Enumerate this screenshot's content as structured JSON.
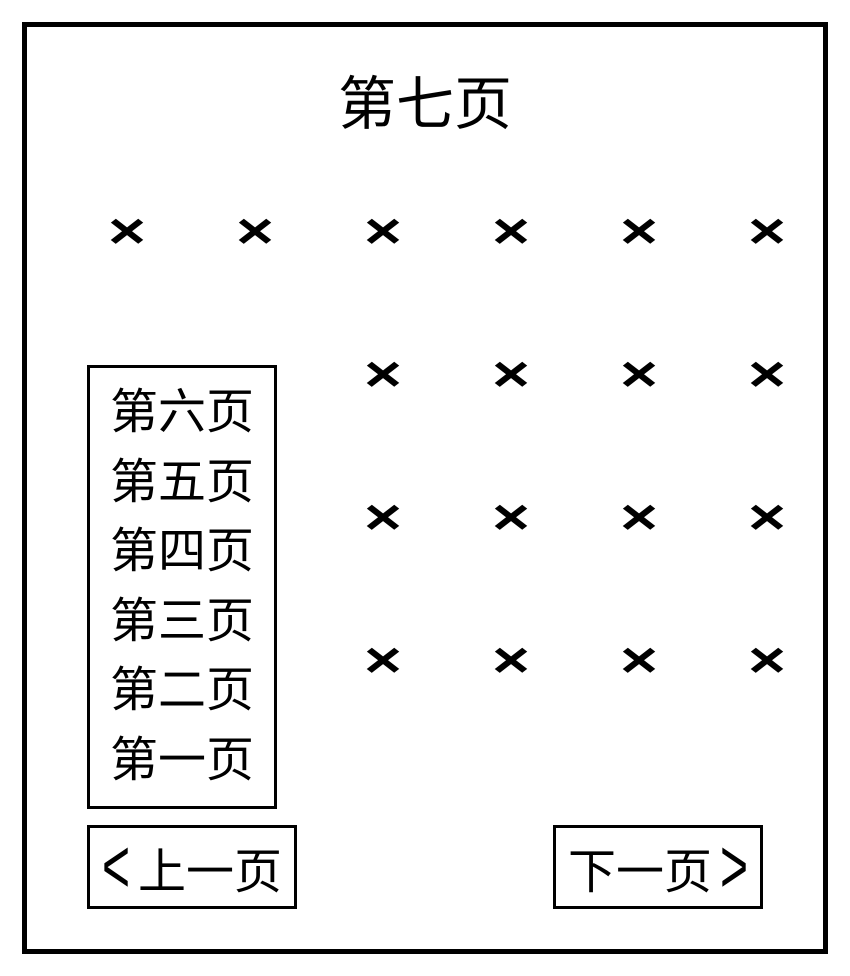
{
  "title": "第七页",
  "page_list": [
    "第六页",
    "第五页",
    "第四页",
    "第三页",
    "第二页",
    "第一页"
  ],
  "nav": {
    "prev_label": "上一页",
    "next_label": "下一页",
    "prev_chevron": "<",
    "next_chevron": ">"
  },
  "grid": {
    "type": "icon-grid",
    "rows": 4,
    "cols": 6,
    "icon_glyph": "×",
    "icon_color": "#000000",
    "layout": [
      [
        true,
        true,
        true,
        true,
        true,
        true
      ],
      [
        false,
        false,
        true,
        true,
        true,
        true
      ],
      [
        false,
        false,
        true,
        true,
        true,
        true
      ],
      [
        false,
        false,
        true,
        true,
        true,
        true
      ]
    ]
  },
  "colors": {
    "background": "#ffffff",
    "border": "#000000",
    "text": "#000000"
  }
}
